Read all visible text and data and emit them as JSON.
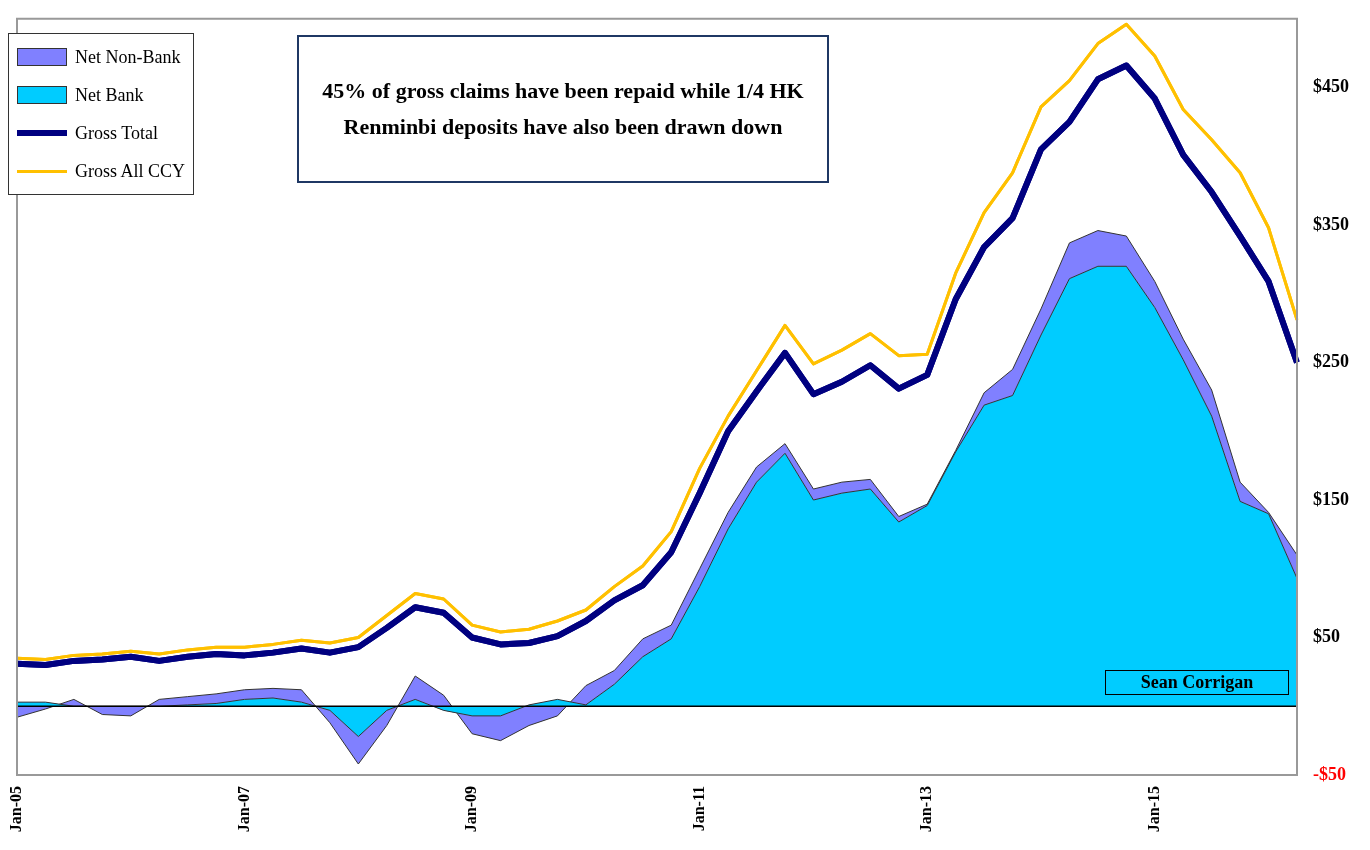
{
  "chart_data": {
    "type": "area",
    "stacked": true,
    "x": [
      "2005-01",
      "2005-04",
      "2005-07",
      "2005-10",
      "2006-01",
      "2006-04",
      "2006-07",
      "2006-10",
      "2007-01",
      "2007-04",
      "2007-07",
      "2007-10",
      "2008-01",
      "2008-04",
      "2008-07",
      "2008-10",
      "2009-01",
      "2009-04",
      "2009-07",
      "2009-10",
      "2010-01",
      "2010-04",
      "2010-07",
      "2010-10",
      "2011-01",
      "2011-04",
      "2011-07",
      "2011-10",
      "2012-01",
      "2012-04",
      "2012-07",
      "2012-10",
      "2013-01",
      "2013-04",
      "2013-07",
      "2013-10",
      "2014-01",
      "2014-04",
      "2014-07",
      "2014-10",
      "2015-01",
      "2015-04",
      "2015-07",
      "2015-10",
      "2016-01",
      "2016-04"
    ],
    "series": [
      {
        "name": "Net Bank",
        "color": "#00ccff",
        "values": [
          3,
          3,
          0,
          0,
          0,
          0,
          1,
          2,
          5,
          6,
          3,
          -3,
          -22,
          -3,
          5,
          -3,
          -7,
          -7,
          1,
          5,
          1,
          16,
          36,
          49,
          87,
          129,
          163,
          184,
          150,
          155,
          158,
          134,
          146,
          185,
          219,
          226,
          270,
          311,
          320,
          320,
          290,
          252,
          211,
          149,
          140,
          93
        ]
      },
      {
        "name": "Net Non-Bank",
        "color": "#8080ff",
        "values": [
          -11,
          -5,
          5,
          -6,
          -7,
          5,
          6,
          7,
          7,
          7,
          9,
          -9,
          -20,
          -11,
          17,
          11,
          -13,
          -18,
          -15,
          -12,
          14,
          10,
          13,
          10,
          13,
          12,
          11,
          7,
          8,
          8,
          7,
          4,
          1,
          1,
          9,
          19,
          19,
          26,
          26,
          22,
          19,
          15,
          19,
          14,
          1,
          17
        ]
      },
      {
        "name": "Gross Total",
        "type": "line",
        "color": "#000080",
        "values": [
          31,
          30,
          33,
          34,
          36,
          33,
          36,
          38,
          37,
          39,
          42,
          39,
          43,
          57,
          72,
          68,
          50,
          45,
          46,
          51,
          62,
          77,
          88,
          112,
          155,
          200,
          229,
          257,
          227,
          236,
          248,
          231,
          241,
          296,
          334,
          355,
          405,
          425,
          456,
          466,
          442,
          401,
          374,
          342,
          309,
          250
        ]
      },
      {
        "name": "Gross All CCY",
        "type": "line",
        "color": "#ffc000",
        "values": [
          35,
          34,
          37,
          38,
          40,
          38,
          41,
          43,
          43,
          45,
          48,
          46,
          50,
          66,
          82,
          78,
          59,
          54,
          56,
          62,
          70,
          87,
          102,
          127,
          173,
          211,
          244,
          277,
          249,
          259,
          271,
          255,
          256,
          315,
          359,
          388,
          436,
          455,
          482,
          496,
          473,
          434,
          412,
          388,
          348,
          281
        ]
      }
    ],
    "xlim": [
      "2005-01",
      "2016-04"
    ],
    "xticks": [
      {
        "value": "2005-01",
        "label": "Jan-05"
      },
      {
        "value": "2007-01",
        "label": "Jan-07"
      },
      {
        "value": "2009-01",
        "label": "Jan-09"
      },
      {
        "value": "2011-01",
        "label": "Jan-11"
      },
      {
        "value": "2013-01",
        "label": "Jan-13"
      },
      {
        "value": "2015-01",
        "label": "Jan-15"
      }
    ],
    "ylim": [
      -50,
      500
    ],
    "yticks": [
      {
        "value": -50,
        "label": "-$50"
      },
      {
        "value": 50,
        "label": "$50"
      },
      {
        "value": 150,
        "label": "$150"
      },
      {
        "value": 250,
        "label": "$250"
      },
      {
        "value": 350,
        "label": "$350"
      },
      {
        "value": 450,
        "label": "$450"
      }
    ],
    "ref_lines": [
      {
        "axis": "y",
        "value": 0,
        "color": "#000000"
      }
    ],
    "grid": false,
    "legend": "top left",
    "marker": "none",
    "annotations": [
      "45% of gross claims have been repaid while 1/4 HK Renminbi deposits have also been drawn down",
      "Sean Corrigan"
    ]
  }
}
